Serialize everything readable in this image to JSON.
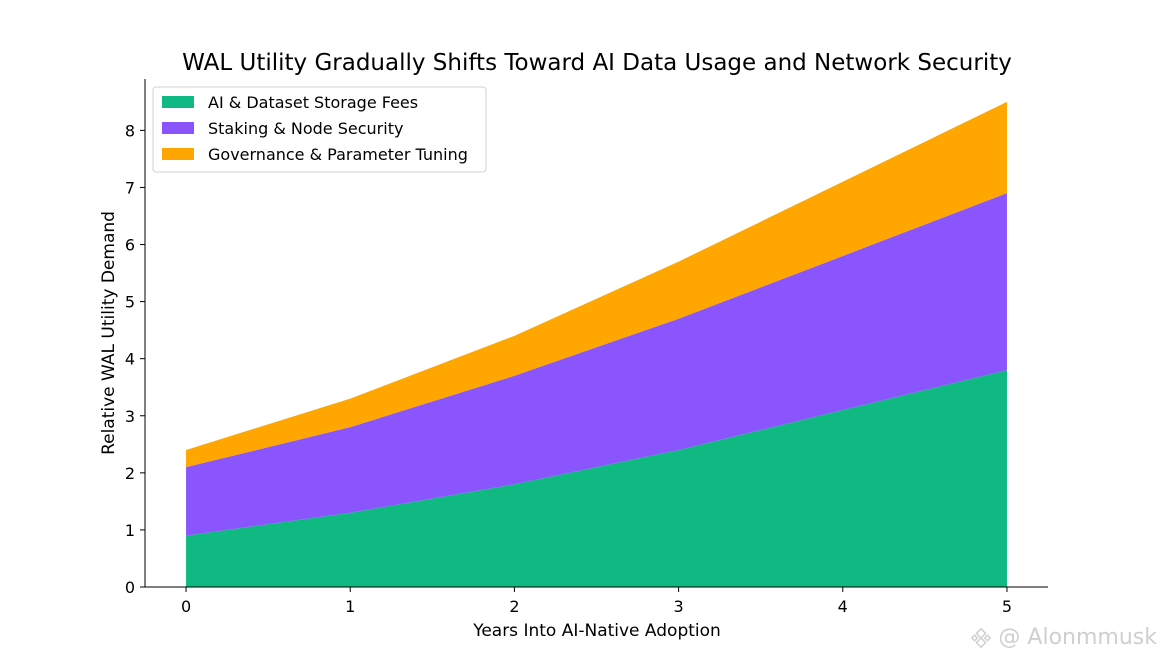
{
  "chart_data": {
    "type": "area",
    "stacked": true,
    "title": "WAL Utility Gradually Shifts Toward AI Data Usage and Network Security",
    "xlabel": "Years Into AI-Native Adoption",
    "ylabel": "Relative WAL Utility Demand",
    "x": [
      0,
      1,
      2,
      3,
      4,
      5
    ],
    "xlim": [
      -0.25,
      5.25
    ],
    "ylim": [
      0,
      8.9
    ],
    "xticks": [
      "0",
      "1",
      "2",
      "3",
      "4",
      "5"
    ],
    "yticks": [
      "0",
      "1",
      "2",
      "3",
      "4",
      "5",
      "6",
      "7",
      "8"
    ],
    "grid": false,
    "legend_position": "top-left",
    "series": [
      {
        "name": "AI & Dataset Storage Fees",
        "color": "#10b981",
        "values": [
          0.9,
          1.3,
          1.8,
          2.4,
          3.1,
          3.8
        ]
      },
      {
        "name": "Staking & Node Security",
        "color": "#8b55fd",
        "values": [
          1.2,
          1.5,
          1.9,
          2.3,
          2.7,
          3.1
        ]
      },
      {
        "name": "Governance & Parameter Tuning",
        "color": "#ffa600",
        "values": [
          0.3,
          0.5,
          0.7,
          1.0,
          1.3,
          1.6
        ]
      }
    ]
  },
  "watermark": {
    "text": "@ Alonmmusk",
    "icon": "binance-square-icon"
  }
}
